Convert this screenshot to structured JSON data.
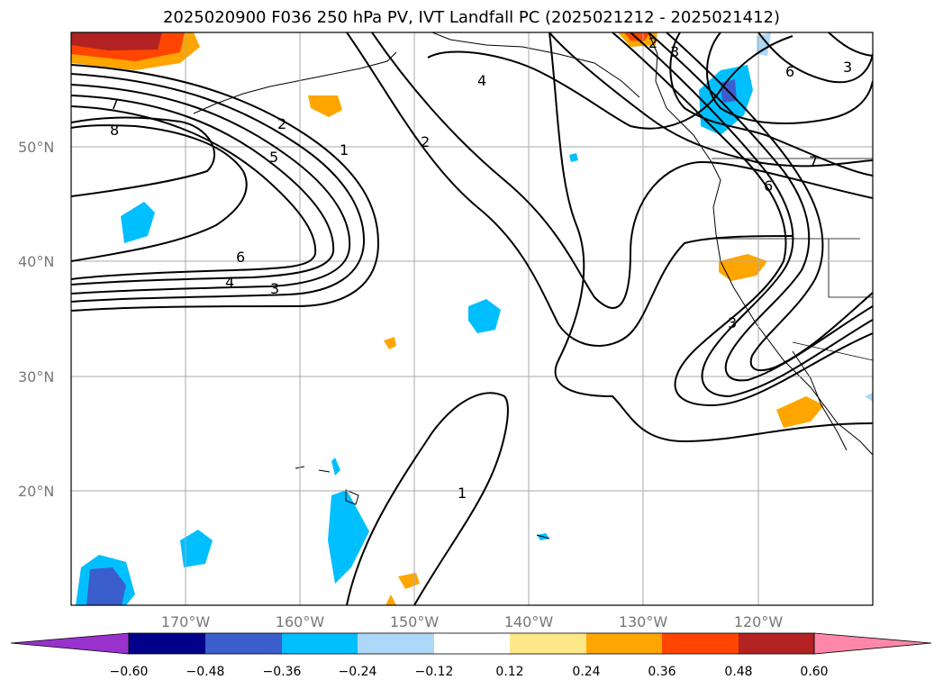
{
  "title": "2025020900 F036 250 hPa PV, IVT Landfall PC (2025021212 - 2025021412)",
  "map": {
    "lon_range": [
      -180,
      -110
    ],
    "lat_range": [
      10,
      60
    ],
    "lat_ticks": [
      {
        "value": 50,
        "label": "50°N"
      },
      {
        "value": 40,
        "label": "40°N"
      },
      {
        "value": 30,
        "label": "30°N"
      },
      {
        "value": 20,
        "label": "20°N"
      }
    ],
    "lon_ticks": [
      {
        "value": -170,
        "label": "170°W"
      },
      {
        "value": -160,
        "label": "160°W"
      },
      {
        "value": -150,
        "label": "150°W"
      },
      {
        "value": -140,
        "label": "140°W"
      },
      {
        "value": -130,
        "label": "130°W"
      },
      {
        "value": -120,
        "label": "120°W"
      }
    ],
    "gridlines": true,
    "contour_labels": [
      "7",
      "8",
      "2",
      "5",
      "1",
      "2",
      "4",
      "3",
      "2",
      "6",
      "4",
      "3",
      "1",
      "6",
      "7",
      "6",
      "3",
      "3"
    ]
  },
  "colorbar": {
    "ticks": [
      "−0.60",
      "−0.48",
      "−0.36",
      "−0.24",
      "−0.12",
      "0.12",
      "0.24",
      "0.36",
      "0.48",
      "0.60"
    ],
    "colors": [
      "#9932cc",
      "#00008b",
      "#3a5fcd",
      "#00bfff",
      "#add8f7",
      "#ffffff",
      "#ffe88a",
      "#ffa500",
      "#ff4500",
      "#b22222",
      "#ff88aa"
    ],
    "extend": "both"
  }
}
